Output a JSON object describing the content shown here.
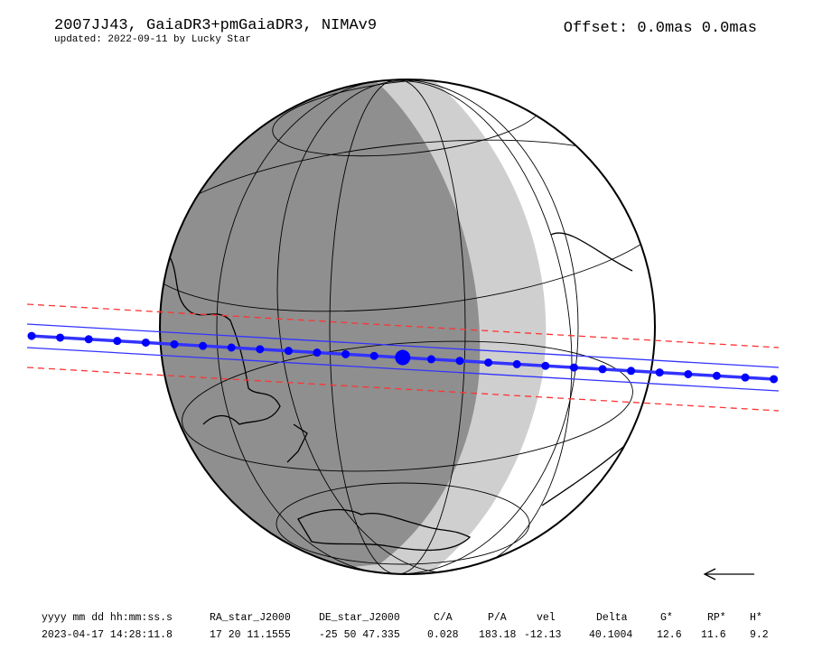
{
  "header": {
    "title": "2007JJ43, GaiaDR3+pmGaiaDR3, NIMAv9",
    "subtitle": "updated: 2022-09-11 by Lucky Star",
    "offset": "Offset: 0.0mas 0.0mas"
  },
  "table": {
    "headers": [
      "yyyy mm dd hh:mm:ss.s",
      "RA_star_J2000",
      "DE_star_J2000",
      "C/A",
      "P/A",
      "vel",
      "Delta",
      "G*",
      "RP*",
      "H*"
    ],
    "rows": [
      [
        "2023-04-17 14:28:11.8",
        "17 20 11.1555",
        "-25 50 47.335",
        "0.028",
        "183.18",
        "-12.13",
        "40.1004",
        "12.6",
        "11.6",
        "9.2"
      ]
    ]
  }
}
